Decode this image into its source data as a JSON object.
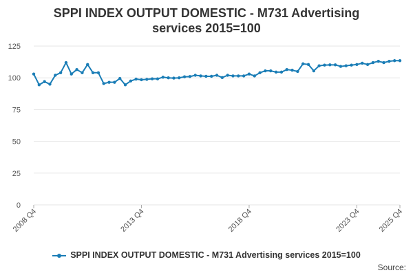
{
  "chart_data": {
    "type": "line",
    "title": "SPPI INDEX OUTPUT DOMESTIC - M731 Advertising services 2015=100",
    "xlabel": "",
    "ylabel": "",
    "ylim": [
      0,
      125
    ],
    "yticks": [
      0,
      25,
      50,
      75,
      100,
      125
    ],
    "x_tick_labels": [
      "2008 Q4",
      "2013 Q4",
      "2018 Q4",
      "2023 Q4",
      "2025 Q4"
    ],
    "x_tick_indices": [
      0,
      20,
      40,
      60,
      68
    ],
    "grid": true,
    "legend_position": "bottom",
    "color": "#1a7db6",
    "series": [
      {
        "name": "SPPI INDEX OUTPUT DOMESTIC - M731 Advertising services 2015=100",
        "values": [
          103,
          94.5,
          97,
          95,
          102,
          104,
          112,
          103,
          106.5,
          104,
          110.5,
          104,
          104,
          95.5,
          96.5,
          96.5,
          99.5,
          94.5,
          97.5,
          99,
          98.5,
          98.8,
          99.2,
          99.2,
          100.5,
          100,
          99.8,
          100,
          100.8,
          101,
          102,
          101.5,
          101.2,
          101.2,
          102,
          100.2,
          102,
          101.5,
          101.5,
          101.5,
          103,
          101.5,
          104,
          105.5,
          105.5,
          104.5,
          104.5,
          106.5,
          106,
          105,
          111,
          110.5,
          105.5,
          109.5,
          110,
          110.2,
          110.2,
          109,
          109.5,
          110,
          110.5,
          111.5,
          110.5,
          112,
          113,
          112,
          113,
          113.5,
          113.5
        ]
      }
    ]
  },
  "source_label": "Source:"
}
